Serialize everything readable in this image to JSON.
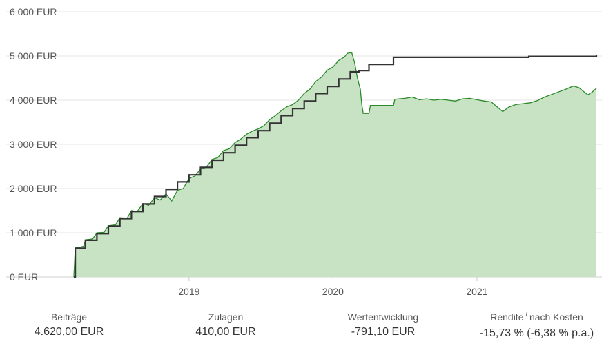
{
  "chart_data": {
    "type": "area",
    "y_axis": {
      "min": 0,
      "max": 6000,
      "ticks": [
        {
          "value": 0,
          "label": "0 EUR"
        },
        {
          "value": 1000,
          "label": "1 000 EUR"
        },
        {
          "value": 2000,
          "label": "2 000 EUR"
        },
        {
          "value": 3000,
          "label": "3 000 EUR"
        },
        {
          "value": 4000,
          "label": "4 000 EUR"
        },
        {
          "value": 5000,
          "label": "5 000 EUR"
        },
        {
          "value": 6000,
          "label": "6 000 EUR"
        }
      ]
    },
    "x_axis": {
      "min": 2018.2,
      "max": 2021.83,
      "ticks": [
        {
          "value": 2019.0,
          "label": "2019"
        },
        {
          "value": 2020.0,
          "label": "2020"
        },
        {
          "value": 2021.0,
          "label": "2021"
        }
      ]
    },
    "grid": true,
    "series": [
      {
        "kind": "step",
        "color": "#333333",
        "points": [
          [
            2018.2,
            0
          ],
          [
            2018.21,
            650
          ],
          [
            2018.28,
            830
          ],
          [
            2018.36,
            980
          ],
          [
            2018.44,
            1150
          ],
          [
            2018.52,
            1320
          ],
          [
            2018.6,
            1480
          ],
          [
            2018.68,
            1650
          ],
          [
            2018.76,
            1820
          ],
          [
            2018.84,
            1980
          ],
          [
            2018.92,
            2150
          ],
          [
            2019.0,
            2310
          ],
          [
            2019.08,
            2480
          ],
          [
            2019.16,
            2640
          ],
          [
            2019.24,
            2810
          ],
          [
            2019.32,
            2980
          ],
          [
            2019.4,
            3150
          ],
          [
            2019.48,
            3310
          ],
          [
            2019.56,
            3480
          ],
          [
            2019.64,
            3650
          ],
          [
            2019.72,
            3810
          ],
          [
            2019.8,
            3980
          ],
          [
            2019.88,
            4150
          ],
          [
            2019.96,
            4310
          ],
          [
            2020.04,
            4480
          ],
          [
            2020.12,
            4640
          ],
          [
            2020.18,
            4670
          ],
          [
            2020.25,
            4810
          ],
          [
            2020.42,
            4970
          ],
          [
            2021.36,
            4990
          ],
          [
            2021.83,
            5020
          ]
        ]
      },
      {
        "kind": "area",
        "color": "#2a8a2a",
        "fill": "#c8e3c4",
        "points": [
          [
            2018.2,
            0
          ],
          [
            2018.21,
            660
          ],
          [
            2018.24,
            670
          ],
          [
            2018.27,
            700
          ],
          [
            2018.28,
            840
          ],
          [
            2018.33,
            860
          ],
          [
            2018.36,
            1000
          ],
          [
            2018.41,
            1010
          ],
          [
            2018.44,
            1160
          ],
          [
            2018.49,
            1180
          ],
          [
            2018.52,
            1340
          ],
          [
            2018.57,
            1330
          ],
          [
            2018.6,
            1500
          ],
          [
            2018.64,
            1480
          ],
          [
            2018.68,
            1660
          ],
          [
            2018.72,
            1620
          ],
          [
            2018.76,
            1790
          ],
          [
            2018.8,
            1740
          ],
          [
            2018.84,
            1880
          ],
          [
            2018.88,
            1720
          ],
          [
            2018.92,
            1960
          ],
          [
            2018.96,
            2000
          ],
          [
            2019.0,
            2230
          ],
          [
            2019.04,
            2280
          ],
          [
            2019.08,
            2440
          ],
          [
            2019.12,
            2480
          ],
          [
            2019.16,
            2660
          ],
          [
            2019.2,
            2700
          ],
          [
            2019.24,
            2860
          ],
          [
            2019.28,
            2900
          ],
          [
            2019.32,
            3040
          ],
          [
            2019.36,
            3120
          ],
          [
            2019.4,
            3230
          ],
          [
            2019.44,
            3300
          ],
          [
            2019.48,
            3350
          ],
          [
            2019.52,
            3420
          ],
          [
            2019.56,
            3560
          ],
          [
            2019.6,
            3650
          ],
          [
            2019.64,
            3760
          ],
          [
            2019.68,
            3850
          ],
          [
            2019.72,
            3900
          ],
          [
            2019.76,
            4000
          ],
          [
            2019.8,
            4150
          ],
          [
            2019.84,
            4250
          ],
          [
            2019.88,
            4420
          ],
          [
            2019.92,
            4520
          ],
          [
            2019.96,
            4680
          ],
          [
            2020.0,
            4750
          ],
          [
            2020.04,
            4900
          ],
          [
            2020.08,
            4980
          ],
          [
            2020.1,
            5060
          ],
          [
            2020.13,
            5080
          ],
          [
            2020.15,
            4850
          ],
          [
            2020.17,
            4500
          ],
          [
            2020.19,
            4250
          ],
          [
            2020.2,
            3900
          ],
          [
            2020.21,
            3700
          ],
          [
            2020.25,
            3700
          ],
          [
            2020.26,
            3880
          ],
          [
            2020.42,
            3880
          ],
          [
            2020.43,
            4020
          ],
          [
            2020.5,
            4040
          ],
          [
            2020.55,
            4070
          ],
          [
            2020.6,
            4010
          ],
          [
            2020.65,
            4030
          ],
          [
            2020.7,
            4000
          ],
          [
            2020.75,
            4020
          ],
          [
            2020.8,
            4000
          ],
          [
            2020.85,
            3980
          ],
          [
            2020.9,
            4030
          ],
          [
            2020.95,
            4040
          ],
          [
            2021.0,
            4010
          ],
          [
            2021.05,
            3980
          ],
          [
            2021.1,
            3960
          ],
          [
            2021.15,
            3820
          ],
          [
            2021.18,
            3740
          ],
          [
            2021.22,
            3840
          ],
          [
            2021.27,
            3900
          ],
          [
            2021.32,
            3920
          ],
          [
            2021.37,
            3940
          ],
          [
            2021.42,
            3990
          ],
          [
            2021.47,
            4070
          ],
          [
            2021.52,
            4130
          ],
          [
            2021.57,
            4190
          ],
          [
            2021.62,
            4250
          ],
          [
            2021.67,
            4320
          ],
          [
            2021.71,
            4280
          ],
          [
            2021.74,
            4200
          ],
          [
            2021.77,
            4120
          ],
          [
            2021.8,
            4180
          ],
          [
            2021.83,
            4270
          ]
        ]
      }
    ]
  },
  "stats": [
    {
      "label": "Beiträge",
      "value": "4.620,00 EUR"
    },
    {
      "label": "Zulagen",
      "value": "410,00 EUR"
    },
    {
      "label": "Wertentwicklung",
      "value": "-791,10 EUR"
    },
    {
      "label": "Rendite",
      "info": "i",
      "suffix": "nach Kosten",
      "value": "-15,73 % (-6,38 % p.a.)"
    }
  ]
}
